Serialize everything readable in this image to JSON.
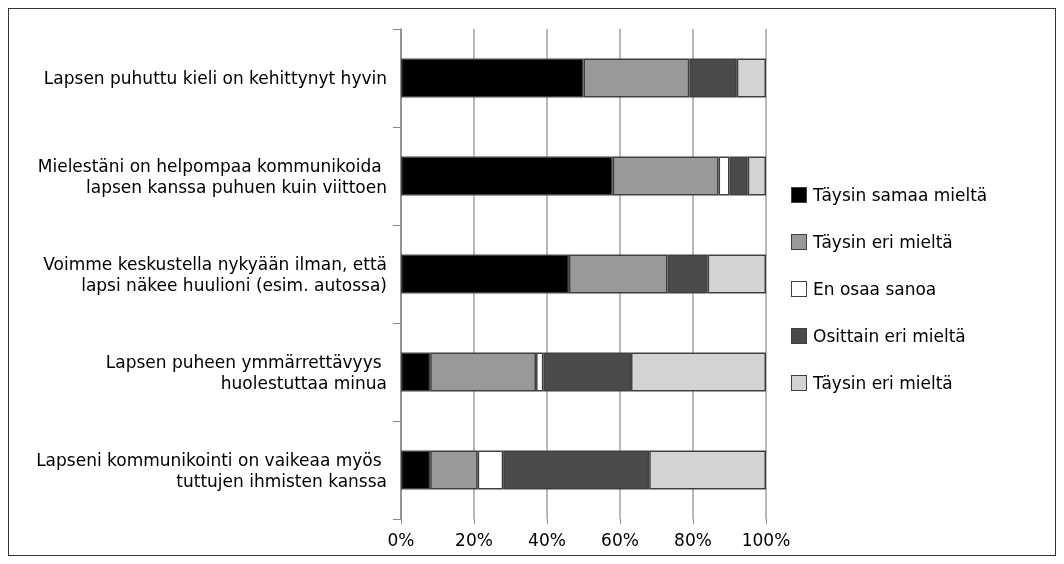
{
  "chart_data": {
    "type": "bar",
    "orientation": "horizontal",
    "stacked": true,
    "categories": [
      "Lapsen puhuttu kieli on kehittynyt hyvin",
      "Mielestäni on helpompaa kommunikoida lapsen kanssa puhuen kuin viittoen",
      "Voimme keskustella nykyään ilman, että lapsi näkee huulioni (esim. autossa)",
      "Lapsen puheen ymmärrettävyys huolestuttaa minua",
      "Lapseni kommunikointi on vaikeaa myös tuttujen ihmisten kanssa"
    ],
    "series": [
      {
        "name": "Täysin samaa mieltä",
        "color": "#000000",
        "values": [
          50,
          58,
          46,
          8,
          8
        ]
      },
      {
        "name": "Täysin eri mieltä",
        "color": "#999999",
        "values": [
          29,
          29,
          27,
          29,
          13
        ]
      },
      {
        "name": "En osaa sanoa",
        "color": "#ffffff",
        "values": [
          null,
          3,
          null,
          2,
          7
        ]
      },
      {
        "name": "Osittain eri mieltä",
        "color": "#4a4a4a",
        "values": [
          13,
          5,
          11,
          24,
          40
        ]
      },
      {
        "name": "Täysin eri mieltä",
        "color": "#d3d3d3",
        "values": [
          8,
          5,
          16,
          37,
          32
        ]
      }
    ],
    "xlim": [
      0,
      100
    ],
    "xticks": [
      {
        "value": 0,
        "label": "0%"
      },
      {
        "value": 20,
        "label": "20%"
      },
      {
        "value": 40,
        "label": "40%"
      },
      {
        "value": 60,
        "label": "60%"
      },
      {
        "value": 80,
        "label": "80%"
      },
      {
        "value": 100,
        "label": "100%"
      }
    ],
    "grid": "x",
    "legend": "right"
  }
}
